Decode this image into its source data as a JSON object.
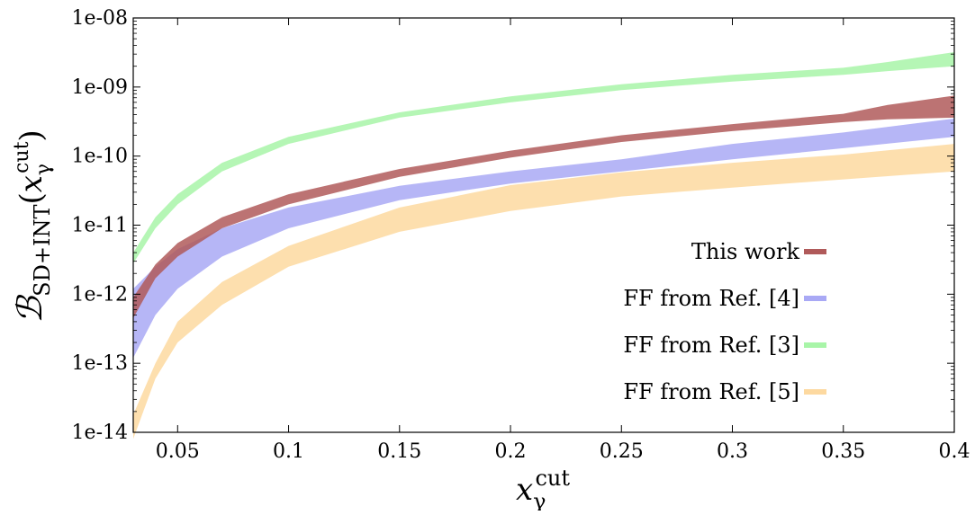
{
  "chart_data": {
    "type": "area",
    "xlim": [
      0.03,
      0.4
    ],
    "ylim": [
      1e-14,
      1e-08
    ],
    "yscale": "log",
    "grid": false,
    "legend_position": "lower-right",
    "xticks": [
      "0.05",
      "0.1",
      "0.15",
      "0.2",
      "0.25",
      "0.3",
      "0.35",
      "0.4"
    ],
    "yticks": [
      "1e-08",
      "1e-09",
      "1e-10",
      "1e-11",
      "1e-12",
      "1e-13",
      "1e-14"
    ],
    "xlabel": {
      "base": "x",
      "sub": "γ",
      "sup": "cut"
    },
    "ylabel": {
      "base": "ℬ",
      "sub": "SD+INT",
      "arg_base": "x",
      "arg_sub": "γ",
      "arg_sup": "cut"
    },
    "series": [
      {
        "name": "FF from Ref. [5]",
        "color": "#fdd9a0",
        "x": [
          0.03,
          0.04,
          0.05,
          0.07,
          0.1,
          0.15,
          0.2,
          0.25,
          0.3,
          0.35,
          0.4
        ],
        "lower": [
          8e-15,
          6e-14,
          2e-13,
          7e-13,
          2.5e-12,
          8e-12,
          1.6e-11,
          2.6e-11,
          3.5e-11,
          4.6e-11,
          6e-11
        ],
        "upper": [
          1.8e-14,
          1e-13,
          4e-13,
          1.5e-12,
          5e-12,
          1.8e-11,
          3.8e-11,
          5.8e-11,
          8e-11,
          1.05e-10,
          1.5e-10
        ]
      },
      {
        "name": "FF from Ref. [4]",
        "color": "#a9a9f5",
        "x": [
          0.03,
          0.04,
          0.05,
          0.07,
          0.1,
          0.15,
          0.2,
          0.25,
          0.3,
          0.35,
          0.4
        ],
        "lower": [
          1.2e-13,
          5e-13,
          1.2e-12,
          3.5e-12,
          9e-12,
          2.3e-11,
          4e-11,
          6e-11,
          9e-11,
          1.3e-10,
          1.9e-10
        ],
        "upper": [
          1.2e-12,
          2.5e-12,
          4.5e-12,
          9e-12,
          1.8e-11,
          3.7e-11,
          6e-11,
          9e-11,
          1.5e-10,
          2.2e-10,
          3.5e-10
        ]
      },
      {
        "name": "This work",
        "color": "#b05a5a",
        "x": [
          0.03,
          0.04,
          0.05,
          0.07,
          0.1,
          0.15,
          0.2,
          0.25,
          0.3,
          0.35,
          0.37,
          0.4
        ],
        "lower": [
          4.5e-13,
          1.7e-12,
          3.5e-12,
          9e-12,
          2e-11,
          5e-11,
          9.5e-11,
          1.6e-10,
          2.3e-10,
          3.1e-10,
          3.4e-10,
          3.6e-10
        ],
        "upper": [
          9e-13,
          2.7e-12,
          5.5e-12,
          1.3e-11,
          2.8e-11,
          6.5e-11,
          1.2e-10,
          2e-10,
          2.9e-10,
          4.1e-10,
          5.5e-10,
          7.5e-10
        ]
      },
      {
        "name": "FF from Ref. [3]",
        "color": "#a8f5a8",
        "x": [
          0.03,
          0.04,
          0.05,
          0.07,
          0.1,
          0.15,
          0.2,
          0.25,
          0.3,
          0.35,
          0.37,
          0.4
        ],
        "lower": [
          2.8e-12,
          9e-12,
          2e-11,
          6e-11,
          1.5e-10,
          3.6e-10,
          6e-10,
          9e-10,
          1.2e-09,
          1.5e-09,
          1.7e-09,
          2e-09
        ],
        "upper": [
          4e-12,
          1.3e-11,
          2.8e-11,
          8e-11,
          1.9e-10,
          4.3e-10,
          7.3e-10,
          1.1e-09,
          1.5e-09,
          1.9e-09,
          2.3e-09,
          3.2e-09
        ]
      }
    ],
    "legend_order": [
      "This work",
      "FF from Ref. [4]",
      "FF from Ref. [3]",
      "FF from Ref. [5]"
    ]
  }
}
